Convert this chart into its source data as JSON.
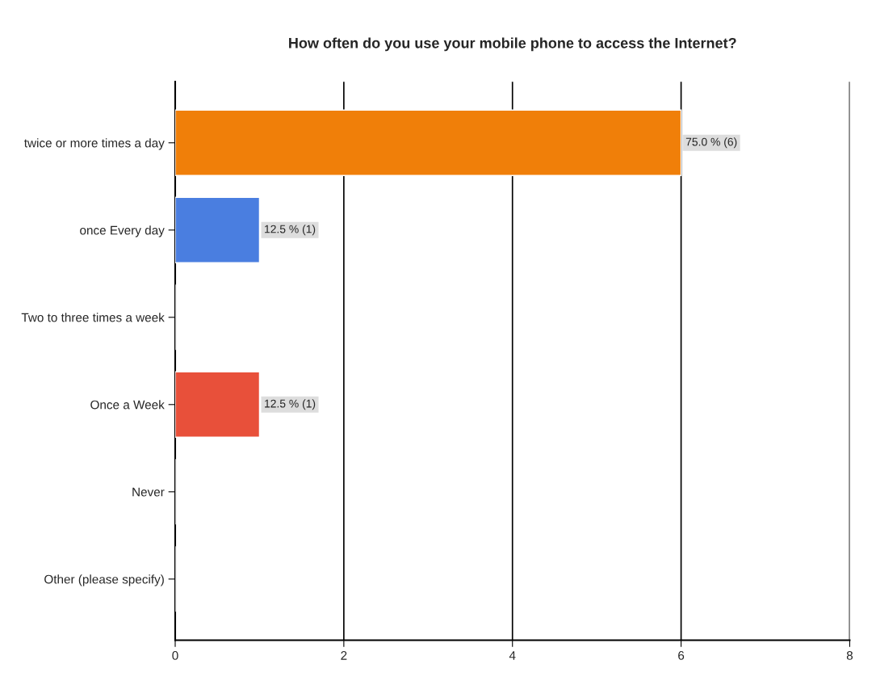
{
  "chart_data": {
    "type": "bar",
    "orientation": "horizontal",
    "title": "How often do you use your mobile phone to access the Internet?",
    "categories": [
      "twice or more times a day",
      "once Every day",
      "Two to three times a week",
      "Once a Week",
      "Never",
      "Other (please specify)"
    ],
    "values": [
      6,
      1,
      0,
      1,
      0,
      0
    ],
    "colors": [
      "#f07f09",
      "#4a7ee0",
      null,
      "#e8503a",
      null,
      null
    ],
    "value_labels": [
      "75.0 % (6)",
      "12.5 % (1)",
      null,
      "12.5 % (1)",
      null,
      null
    ],
    "xlim": [
      0,
      8
    ],
    "xticks": [
      0,
      2,
      4,
      6,
      8
    ],
    "grid": "x"
  }
}
